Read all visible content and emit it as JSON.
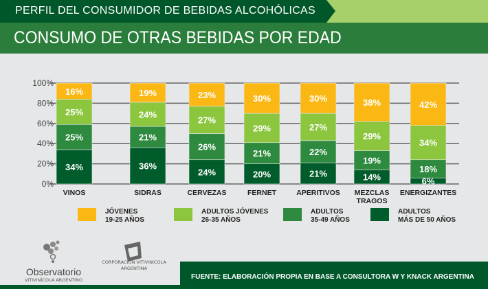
{
  "header": {
    "kicker": "PERFIL DEL CONSUMIDOR DE BEBIDAS ALCOHÓLICAS",
    "title": "CONSUMO DE OTRAS BEBIDAS POR EDAD"
  },
  "chart_data": {
    "type": "bar",
    "stacked": true,
    "categories": [
      "VINOS",
      "SIDRAS",
      "CERVEZAS",
      "FERNET",
      "APERITIVOS",
      "MEZCLAS TRAGOS",
      "ENERGIZANTES"
    ],
    "yticks": [
      "0%",
      "20%",
      "40%",
      "60%",
      "80%",
      "100%"
    ],
    "ylim": [
      0,
      100
    ],
    "grid": true,
    "legend_position": "bottom",
    "series": [
      {
        "name": "ADULTOS MÁS DE 50 AÑOS",
        "color": "#005c2a",
        "values": [
          34,
          36,
          24,
          20,
          21,
          14,
          6
        ]
      },
      {
        "name": "ADULTOS 35-49 AÑOS",
        "color": "#2e8a3e",
        "values": [
          25,
          21,
          26,
          21,
          22,
          19,
          18
        ]
      },
      {
        "name": "ADULTOS JÓVENES 26-35 AÑOS",
        "color": "#8cc63f",
        "values": [
          25,
          24,
          27,
          29,
          27,
          29,
          34
        ]
      },
      {
        "name": "JÓVENES 19-25 AÑOS",
        "color": "#fbb814",
        "values": [
          16,
          19,
          23,
          30,
          30,
          38,
          42
        ]
      }
    ]
  },
  "legend": [
    {
      "l1": "JÓVENES",
      "l2": "19-25 AÑOS",
      "color": "#fbb814"
    },
    {
      "l1": "ADULTOS JÓVENES",
      "l2": "26-35 AÑOS",
      "color": "#8cc63f"
    },
    {
      "l1": "ADULTOS",
      "l2": "35-49 AÑOS",
      "color": "#2e8a3e"
    },
    {
      "l1": "ADULTOS",
      "l2": "MÁS DE 50 AÑOS",
      "color": "#005c2a"
    }
  ],
  "logos": {
    "observatorio_name": "Observatorio",
    "observatorio_sub": "VITIVINÍCOLA ARGENTINO",
    "coviar_l1": "CORPORACION VITIVINICOLA",
    "coviar_l2": "ARGENTINA"
  },
  "footer": {
    "source": "FUENTE: ELABORACIÓN PROPIA EN BASE A CONSULTORA W Y KNACK ARGENTINA"
  }
}
